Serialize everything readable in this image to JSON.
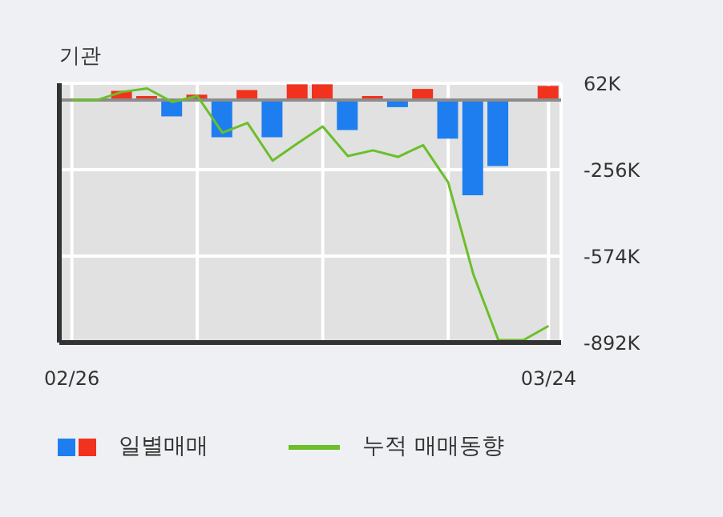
{
  "chart_data": {
    "type": "bar",
    "title": "기관",
    "categories": [
      "02/26",
      null,
      null,
      null,
      null,
      null,
      null,
      null,
      null,
      null,
      null,
      null,
      null,
      null,
      null,
      null,
      null,
      null,
      null,
      "03/24"
    ],
    "series": [
      {
        "name": "일별매매",
        "colors": [
          "#f0321e",
          "#f0321e",
          "#f0321e",
          "#f0321e",
          "#1e7ef0",
          "#f0321e",
          "#1e7ef0",
          "#f0321e",
          "#1e7ef0",
          "#f0321e",
          "#f0321e",
          "#1e7ef0",
          "#f0321e",
          "#1e7ef0",
          "#f0321e",
          "#1e7ef0",
          "#1e7ef0",
          "#1e7ef0",
          "#f0321e",
          "#f0321e"
        ],
        "values": [
          0,
          0,
          34000,
          15000,
          -60000,
          20000,
          -137000,
          37000,
          -137000,
          58000,
          58000,
          -110000,
          15000,
          -26000,
          41000,
          -142000,
          -350000,
          -243000,
          0,
          52000
        ]
      },
      {
        "name": "누적 매매동향",
        "type": "line",
        "color": "#6abf2a",
        "values": [
          0,
          0,
          30000,
          43000,
          -7000,
          15000,
          -120000,
          -84000,
          -223000,
          -159000,
          -97000,
          -206000,
          -185000,
          -209000,
          -166000,
          -303000,
          -640000,
          -883000,
          -883000,
          -831000
        ]
      }
    ],
    "ylim": [
      -892000,
      62000
    ],
    "yticks": [
      {
        "value": 62000,
        "label": "62K"
      },
      {
        "value": -256000,
        "label": "-256K"
      },
      {
        "value": -574000,
        "label": "-574K"
      },
      {
        "value": -892000,
        "label": "-892K"
      }
    ],
    "ref_lines": [
      {
        "axis": "y",
        "value": 0,
        "color": "#8c8c8c"
      }
    ],
    "grid": true,
    "legend": "bottom",
    "marker": "none"
  }
}
